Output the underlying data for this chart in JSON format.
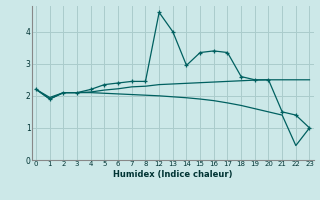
{
  "xlabel": "Humidex (Indice chaleur)",
  "bg_color": "#cce8e8",
  "grid_color": "#aacccc",
  "line_color": "#006060",
  "x_positions": [
    0,
    1,
    2,
    3,
    4,
    5,
    6,
    7,
    8,
    9,
    10,
    11,
    12,
    13,
    14,
    15,
    16,
    17,
    18,
    19,
    20
  ],
  "x_labels": [
    "0",
    "1",
    "2",
    "3",
    "4",
    "5",
    "6",
    "7",
    "8",
    "12",
    "13",
    "14",
    "15",
    "16",
    "17",
    "18",
    "19",
    "20",
    "21",
    "22",
    "23"
  ],
  "ylim": [
    0,
    4.8
  ],
  "xlim": [
    -0.3,
    20.3
  ],
  "yticks": [
    0,
    1,
    2,
    3,
    4
  ],
  "series": [
    {
      "x": [
        0,
        1,
        2,
        3,
        4,
        5,
        6,
        7,
        8,
        9,
        10,
        11,
        12,
        13,
        14,
        15,
        16,
        17,
        18,
        19,
        20
      ],
      "y": [
        2.2,
        1.9,
        2.1,
        2.1,
        2.2,
        2.35,
        2.4,
        2.45,
        2.45,
        4.6,
        4.0,
        2.95,
        3.35,
        3.4,
        3.35,
        2.6,
        2.5,
        2.5,
        1.5,
        1.4,
        1.0
      ],
      "marker": "+"
    },
    {
      "x": [
        0,
        1,
        2,
        3,
        4,
        5,
        6,
        7,
        8,
        9,
        10,
        11,
        12,
        13,
        14,
        15,
        16,
        17,
        18,
        19,
        20
      ],
      "y": [
        2.2,
        1.95,
        2.1,
        2.1,
        2.12,
        2.18,
        2.22,
        2.28,
        2.3,
        2.35,
        2.37,
        2.39,
        2.41,
        2.43,
        2.45,
        2.47,
        2.49,
        2.5,
        2.5,
        2.5,
        2.5
      ],
      "marker": null
    },
    {
      "x": [
        0,
        1,
        2,
        3,
        4,
        5,
        6,
        7,
        8,
        9,
        10,
        11,
        12,
        13,
        14,
        15,
        16,
        17,
        18,
        19,
        20
      ],
      "y": [
        2.2,
        1.9,
        2.1,
        2.1,
        2.1,
        2.08,
        2.06,
        2.04,
        2.02,
        2.0,
        1.97,
        1.94,
        1.9,
        1.85,
        1.78,
        1.7,
        1.6,
        1.5,
        1.4,
        0.45,
        1.0
      ],
      "marker": null
    }
  ]
}
